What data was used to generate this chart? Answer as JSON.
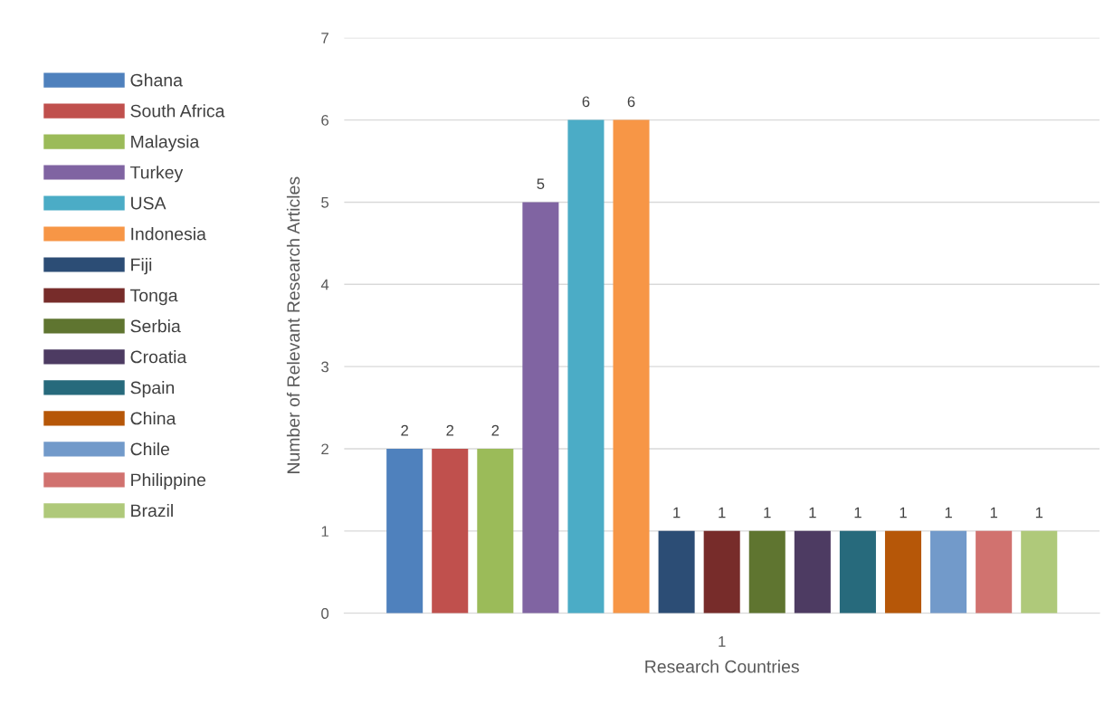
{
  "chart_data": {
    "type": "bar",
    "xlabel": "Research Countries",
    "ylabel": "Number of Relevant Research Articles",
    "categories": [
      "1"
    ],
    "series": [
      {
        "name": "Ghana",
        "color": "#4f81bd",
        "values": [
          2
        ]
      },
      {
        "name": "South Africa",
        "color": "#c0504d",
        "values": [
          2
        ]
      },
      {
        "name": "Malaysia",
        "color": "#9bbb59",
        "values": [
          2
        ]
      },
      {
        "name": "Turkey",
        "color": "#8064a2",
        "values": [
          5
        ]
      },
      {
        "name": "USA",
        "color": "#4bacc6",
        "values": [
          6
        ]
      },
      {
        "name": "Indonesia",
        "color": "#f79646",
        "values": [
          6
        ]
      },
      {
        "name": "Fiji",
        "color": "#2c4d75",
        "values": [
          1
        ]
      },
      {
        "name": "Tonga",
        "color": "#772c2a",
        "values": [
          1
        ]
      },
      {
        "name": "Serbia",
        "color": "#5f7530",
        "values": [
          1
        ]
      },
      {
        "name": "Croatia",
        "color": "#4d3b62",
        "values": [
          1
        ]
      },
      {
        "name": "Spain",
        "color": "#276a7c",
        "values": [
          1
        ]
      },
      {
        "name": "China",
        "color": "#b65708",
        "values": [
          1
        ]
      },
      {
        "name": "Chile",
        "color": "#729aca",
        "values": [
          1
        ]
      },
      {
        "name": "Philippine",
        "color": "#d1726f",
        "values": [
          1
        ]
      },
      {
        "name": "Brazil",
        "color": "#afc97a",
        "values": [
          1
        ]
      }
    ],
    "ylim": [
      0,
      7
    ],
    "yticks": [
      0,
      1,
      2,
      3,
      4,
      5,
      6,
      7
    ],
    "grid": "y",
    "legend": "left",
    "data_labels": true
  }
}
